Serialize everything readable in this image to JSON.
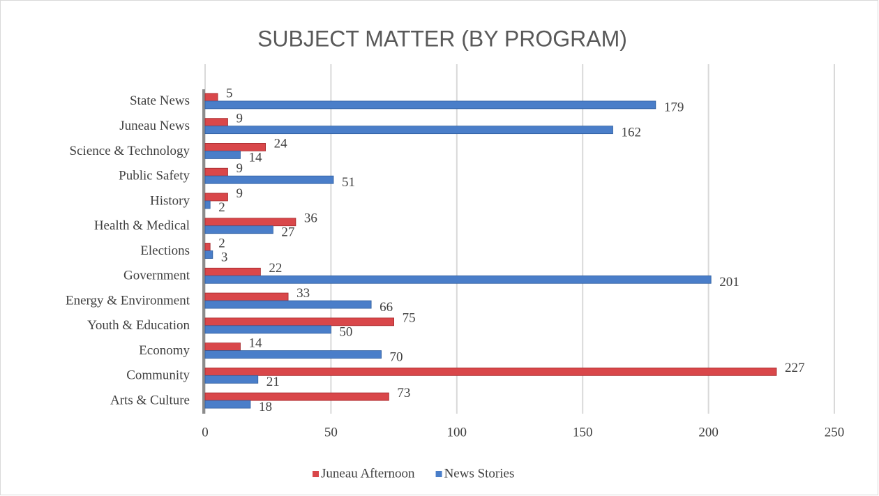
{
  "chart_data": {
    "type": "hbar",
    "title": "SUBJECT MATTER (BY PROGRAM)",
    "categories": [
      "Arts & Culture",
      "Community",
      "Economy",
      "Youth & Education",
      "Energy & Environment",
      "Government",
      "Elections",
      "Health & Medical",
      "History",
      "Public Safety",
      "Science & Technology",
      "Juneau News",
      "State News"
    ],
    "series": [
      {
        "name": "Juneau Afternoon",
        "color": "#d9474a",
        "values": [
          73,
          227,
          14,
          75,
          33,
          22,
          2,
          36,
          9,
          9,
          24,
          9,
          5
        ]
      },
      {
        "name": "News Stories",
        "color": "#4a7ec9",
        "values": [
          18,
          21,
          70,
          50,
          66,
          201,
          3,
          27,
          2,
          51,
          14,
          162,
          179
        ]
      }
    ],
    "xlim": [
      0,
      250
    ],
    "xticks": [
      0,
      50,
      100,
      150,
      200,
      250
    ],
    "grid": true,
    "legend": "bottom"
  }
}
